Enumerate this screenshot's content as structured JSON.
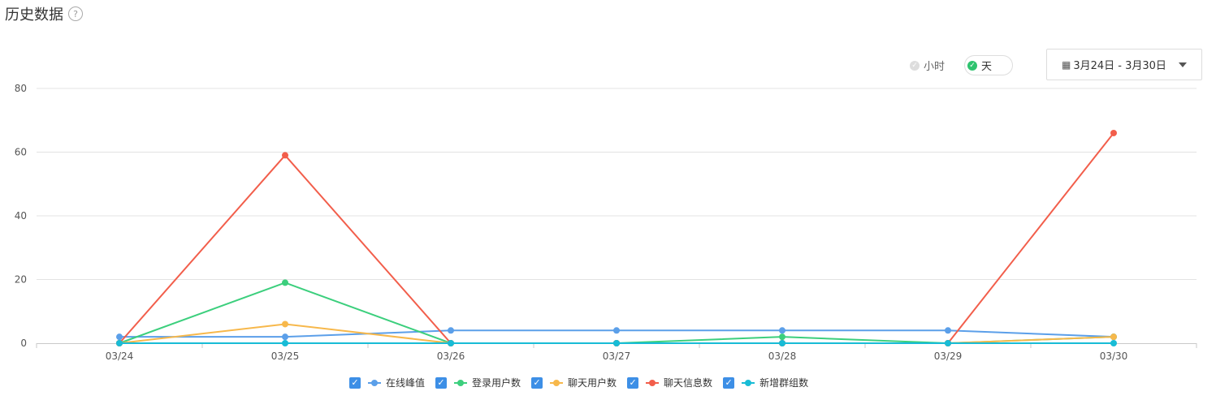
{
  "header": {
    "title": "历史数据",
    "help_icon": "?"
  },
  "granularity": {
    "hour_label": "小时",
    "day_label": "天",
    "selected": "day"
  },
  "date_range": {
    "label": "3月24日 - 3月30日",
    "calendar_icon": "calendar-icon"
  },
  "chart_data": {
    "type": "line",
    "categories": [
      "03/24",
      "03/25",
      "03/26",
      "03/27",
      "03/28",
      "03/29",
      "03/30"
    ],
    "ylim": [
      0,
      80
    ],
    "yticks": [
      0,
      20,
      40,
      60,
      80
    ],
    "grid": true,
    "legend_position": "bottom",
    "series": [
      {
        "name": "在线峰值",
        "color": "#5b9fe9",
        "values": [
          2,
          2,
          4,
          4,
          4,
          4,
          2
        ]
      },
      {
        "name": "登录用户数",
        "color": "#3ccf7d",
        "values": [
          0,
          19,
          0,
          0,
          2,
          0,
          2
        ]
      },
      {
        "name": "聊天用户数",
        "color": "#f7b84b",
        "values": [
          0,
          6,
          0,
          0,
          0,
          0,
          2
        ]
      },
      {
        "name": "聊天信息数",
        "color": "#f25e4b",
        "values": [
          0,
          59,
          0,
          0,
          0,
          0,
          66
        ]
      },
      {
        "name": "新增群组数",
        "color": "#18bcd6",
        "values": [
          0,
          0,
          0,
          0,
          0,
          0,
          0
        ]
      }
    ]
  }
}
